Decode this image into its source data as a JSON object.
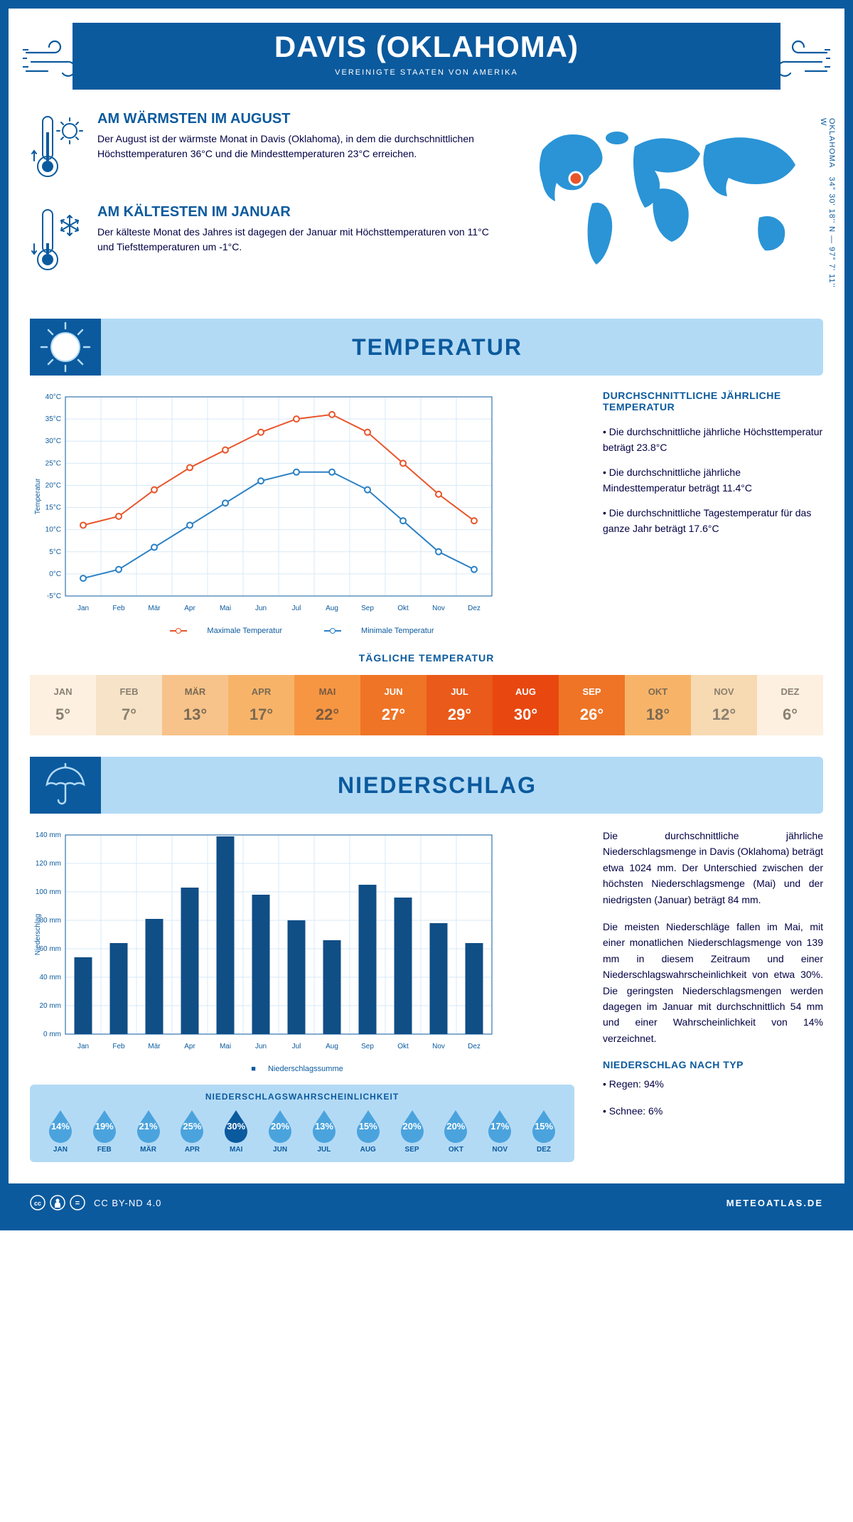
{
  "header": {
    "title": "DAVIS (OKLAHOMA)",
    "subtitle": "VEREINIGTE STAATEN VON AMERIKA"
  },
  "coords": {
    "text": "34° 30' 18'' N — 97° 7' 11'' W",
    "region": "OKLAHOMA"
  },
  "facts": {
    "hot": {
      "title": "AM WÄRMSTEN IM AUGUST",
      "text": "Der August ist der wärmste Monat in Davis (Oklahoma), in dem die durchschnittlichen Höchsttemperaturen 36°C und die Mindesttemperaturen 23°C erreichen."
    },
    "cold": {
      "title": "AM KÄLTESTEN IM JANUAR",
      "text": "Der kälteste Monat des Jahres ist dagegen der Januar mit Höchsttemperaturen von 11°C und Tiefsttemperaturen um -1°C."
    }
  },
  "sections": {
    "temperature": "TEMPERATUR",
    "precipitation": "NIEDERSCHLAG"
  },
  "months_short": [
    "Jan",
    "Feb",
    "Mär",
    "Apr",
    "Mai",
    "Jun",
    "Jul",
    "Aug",
    "Sep",
    "Okt",
    "Nov",
    "Dez"
  ],
  "months_upper": [
    "JAN",
    "FEB",
    "MÄR",
    "APR",
    "MAI",
    "JUN",
    "JUL",
    "AUG",
    "SEP",
    "OKT",
    "NOV",
    "DEZ"
  ],
  "temp_chart": {
    "type": "line",
    "ylabel": "Temperatur",
    "ylim": [
      -5,
      40
    ],
    "ytick_step": 5,
    "max_series": {
      "label": "Maximale Temperatur",
      "color": "#e8552b",
      "values": [
        11,
        13,
        19,
        24,
        28,
        32,
        35,
        36,
        32,
        25,
        18,
        12
      ]
    },
    "min_series": {
      "label": "Minimale Temperatur",
      "color": "#2a80c4",
      "values": [
        -1,
        1,
        6,
        11,
        16,
        21,
        23,
        23,
        19,
        12,
        5,
        1
      ]
    },
    "grid_color": "#d7e9f7",
    "background": "#ffffff"
  },
  "temp_info": {
    "heading": "DURCHSCHNITTLICHE JÄHRLICHE TEMPERATUR",
    "b1": "• Die durchschnittliche jährliche Höchsttemperatur beträgt 23.8°C",
    "b2": "• Die durchschnittliche jährliche Mindesttemperatur beträgt 11.4°C",
    "b3": "• Die durchschnittliche Tagestemperatur für das ganze Jahr beträgt 17.6°C"
  },
  "daily_temp": {
    "heading": "TÄGLICHE TEMPERATUR",
    "values": [
      "5°",
      "7°",
      "13°",
      "17°",
      "22°",
      "27°",
      "29°",
      "30°",
      "26°",
      "18°",
      "12°",
      "6°"
    ],
    "bg_colors": [
      "#fdf0e1",
      "#f7e3c7",
      "#f7c38a",
      "#f7b469",
      "#f79642",
      "#ef7426",
      "#ea5a1a",
      "#e8480f",
      "#ef7426",
      "#f7b469",
      "#f7d9b2",
      "#fdf0e1"
    ],
    "text_colors": [
      "#8a8071",
      "#8a8071",
      "#7a6a54",
      "#7a6a54",
      "#7a5a3e",
      "#fff",
      "#fff",
      "#fff",
      "#fff",
      "#7a6a54",
      "#8a8071",
      "#8a8071"
    ]
  },
  "precip_chart": {
    "type": "bar",
    "ylabel": "Niederschlag",
    "ylim": [
      0,
      140
    ],
    "ytick_step": 20,
    "values": [
      54,
      64,
      81,
      103,
      139,
      98,
      80,
      66,
      105,
      96,
      78,
      64
    ],
    "bar_color": "#104e86",
    "grid_color": "#d7e9f7",
    "legend": "Niederschlagssumme"
  },
  "precip_text": {
    "p1": "Die durchschnittliche jährliche Niederschlagsmenge in Davis (Oklahoma) beträgt etwa 1024 mm. Der Unterschied zwischen der höchsten Niederschlagsmenge (Mai) und der niedrigsten (Januar) beträgt 84 mm.",
    "p2": "Die meisten Niederschläge fallen im Mai, mit einer monatlichen Niederschlagsmenge von 139 mm in diesem Zeitraum und einer Niederschlagswahrscheinlichkeit von etwa 30%. Die geringsten Niederschlagsmengen werden dagegen im Januar mit durchschnittlich 54 mm und einer Wahrscheinlichkeit von 14% verzeichnet.",
    "type_heading": "NIEDERSCHLAG NACH TYP",
    "type_rain": "• Regen: 94%",
    "type_snow": "• Schnee: 6%"
  },
  "precip_prob": {
    "heading": "NIEDERSCHLAGSWAHRSCHEINLICHKEIT",
    "values": [
      "14%",
      "19%",
      "21%",
      "25%",
      "30%",
      "20%",
      "13%",
      "15%",
      "20%",
      "20%",
      "17%",
      "15%"
    ],
    "highlight_idx": 4,
    "drop_color": "#4ba3dd",
    "drop_highlight": "#0b5a9e"
  },
  "footer": {
    "license": "CC BY-ND 4.0",
    "brand": "METEOATLAS.DE"
  }
}
